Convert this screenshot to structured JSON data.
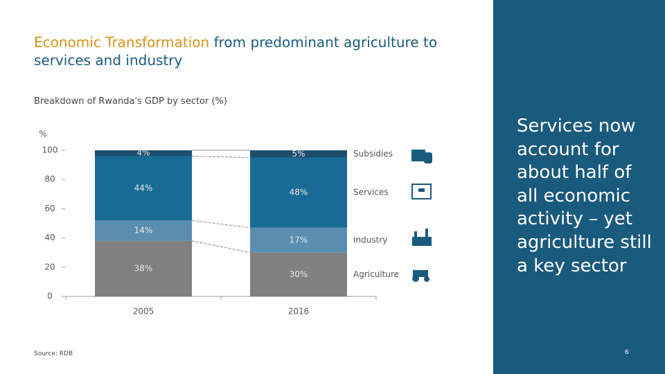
{
  "title_highlight": "Economic Transformation",
  "title_rest": "from predominant agriculture to services and industry",
  "subtitle": "Breakdown of Rwanda's GDP by sector (%)",
  "source": "Source: RDB",
  "sidebar_text": "Services now account for about half of all economic activity – yet agriculture still a key sector",
  "page_number": "6",
  "chart_data": {
    "type": "stacked_bar",
    "y_label": "%",
    "categories": [
      "2005",
      "2016"
    ],
    "series": [
      {
        "name": "Agriculture",
        "color": "#808080",
        "values": [
          38,
          30
        ],
        "value_labels": [
          "38%",
          "30%"
        ]
      },
      {
        "name": "Industry",
        "color": "#5a8db0",
        "values": [
          14,
          17
        ],
        "value_labels": [
          "14%",
          "17%"
        ]
      },
      {
        "name": "Services",
        "color": "#1a6a96",
        "values": [
          44,
          48
        ],
        "value_labels": [
          "44%",
          "48%"
        ]
      },
      {
        "name": "Subsidies",
        "color": "#1d4e6e",
        "values": [
          4,
          5
        ],
        "value_labels": [
          "4%",
          "5%"
        ]
      }
    ],
    "ylim": [
      0,
      100
    ],
    "yticks": [
      0,
      20,
      40,
      60,
      80,
      100
    ]
  }
}
